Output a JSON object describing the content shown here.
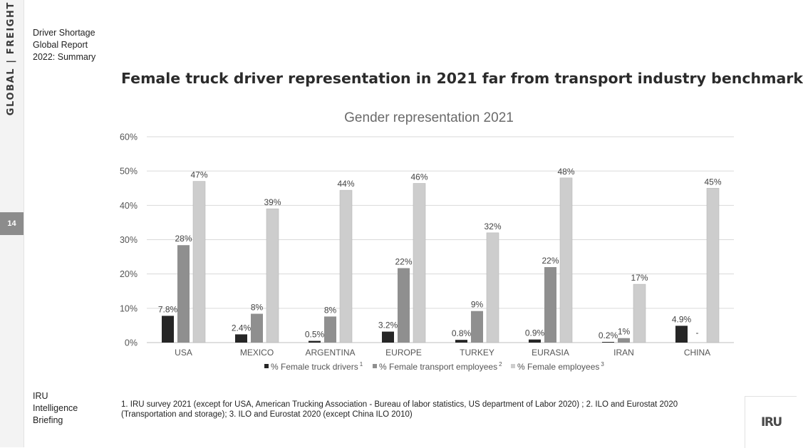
{
  "sidebar": {
    "label": "GLOBAL | FREIGHT",
    "page_number": "14"
  },
  "report_title": [
    "Driver Shortage",
    "Global Report",
    "2022: Summary"
  ],
  "headline": "Female truck driver representation in 2021 far from transport industry benchmark",
  "footer_org": [
    "IRU",
    "Intelligence",
    "Briefing"
  ],
  "footnote": "1. IRU survey 2021 (except for USA, American Trucking  Association  - Bureau of labor statistics, US department of Labor 2020) ; 2. ILO and Eurostat 2020 (Transportation and storage); 3. ILO and Eurostat 2020 (except China ILO 2010)",
  "logo_text": "IRU",
  "chart_data": {
    "type": "bar",
    "title": "Gender representation 2021",
    "categories": [
      "USA",
      "MEXICO",
      "ARGENTINA",
      "EUROPE",
      "TURKEY",
      "EURASIA",
      "IRAN",
      "CHINA"
    ],
    "ylim": [
      0,
      60
    ],
    "yticks": [
      "0%",
      "10%",
      "20%",
      "30%",
      "40%",
      "50%",
      "60%"
    ],
    "grid": true,
    "legend_position": "bottom",
    "series": [
      {
        "name": "% Female truck drivers",
        "superscript": "1",
        "color": "#262626",
        "values": [
          7.8,
          2.4,
          0.5,
          3.2,
          0.8,
          0.9,
          0.2,
          4.9
        ],
        "labels": [
          "7.8%",
          "2.4%",
          "0.5%",
          "3.2%",
          "0.8%",
          "0.9%",
          "0.2%",
          "4.9%"
        ]
      },
      {
        "name": "% Female transport employees",
        "superscript": "2",
        "color": "#8f8f8f",
        "values": [
          28.4,
          8.4,
          7.6,
          21.7,
          9.2,
          22.0,
          1.3,
          null
        ],
        "labels": [
          "28%",
          "8%",
          "8%",
          "22%",
          "9%",
          "22%",
          "1%",
          "-"
        ]
      },
      {
        "name": "% Female employees",
        "superscript": "3",
        "color": "#cdcdcd",
        "values": [
          47,
          39,
          44.4,
          46.4,
          32,
          48,
          17,
          45
        ],
        "labels": [
          "47%",
          "39%",
          "44%",
          "46%",
          "32%",
          "48%",
          "17%",
          "45%"
        ]
      }
    ]
  }
}
